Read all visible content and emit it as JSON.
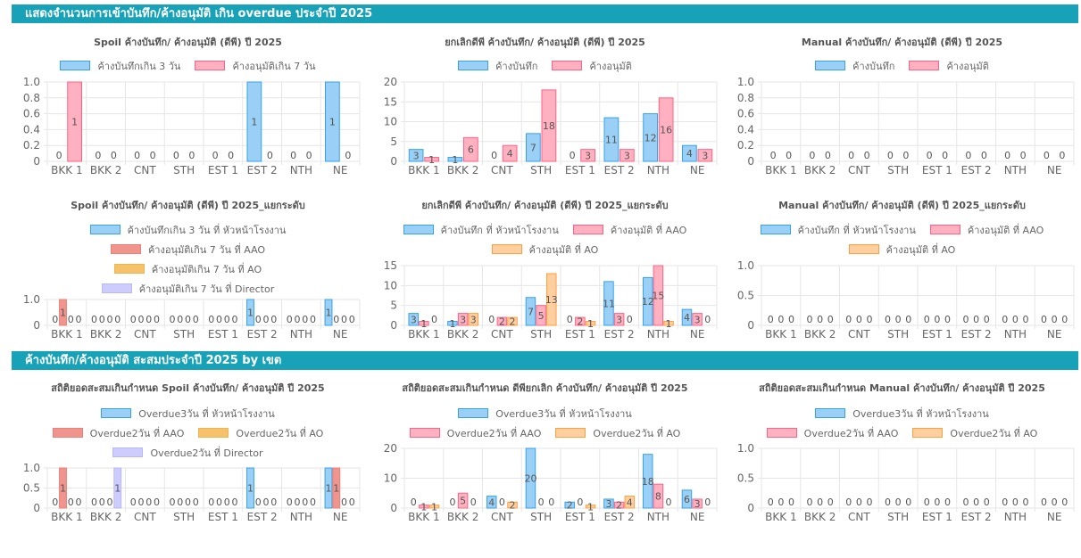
{
  "sections": [
    {
      "title": "แสดงจำนวนการเข้าบันทึก/ค้างอนุมัติ เกิน overdue ประจำปี 2025"
    },
    {
      "title": "ค้างบันทึก/ค้างอนุมัติ สะสมประจำปี 2025 by เขต"
    }
  ],
  "colors": {
    "blue": "#9ad0f5",
    "blue_border": "#36a2eb",
    "pink": "#ffb1c1",
    "pink_border": "#ff6384",
    "orange": "#ffcf9f",
    "orange_border": "#ff9f40",
    "purple": "#ccccff"
  },
  "chart_data": [
    {
      "type": "bar",
      "title": "Spoil ค้างบันทึก/ ค้างอนุมัติ (ดีพี) ปี 2025",
      "categories": [
        "BKK 1",
        "BKK 2",
        "CNT",
        "STH",
        "EST 1",
        "EST 2",
        "NTH",
        "NE"
      ],
      "ylim": [
        0,
        1
      ],
      "yticks": [
        "0",
        "0.2",
        "0.4",
        "0.6",
        "0.8",
        "1.0"
      ],
      "series": [
        {
          "name": "ค้างบันทึกเกิน 3 วัน",
          "values": [
            0,
            0,
            0,
            0,
            0,
            1,
            0,
            1
          ]
        },
        {
          "name": "ค้างอนุมัติเกิน 7 วัน",
          "values": [
            1,
            0,
            0,
            0,
            0,
            0,
            0,
            0
          ]
        }
      ]
    },
    {
      "type": "bar",
      "title": "ยกเลิกดีพี ค้างบันทึก/ ค้างอนุมัติ (ดีพี) ปี 2025",
      "categories": [
        "BKK 1",
        "BKK 2",
        "CNT",
        "STH",
        "EST 1",
        "EST 2",
        "NTH",
        "NE"
      ],
      "ylim": [
        0,
        20
      ],
      "yticks": [
        "0",
        "5",
        "10",
        "15",
        "20"
      ],
      "series": [
        {
          "name": "ค้างบันทึก",
          "values": [
            3,
            1,
            0,
            7,
            0,
            11,
            12,
            4
          ]
        },
        {
          "name": "ค้างอนุมัติ",
          "values": [
            1,
            6,
            4,
            18,
            3,
            3,
            16,
            3
          ]
        }
      ]
    },
    {
      "type": "bar",
      "title": "Manual ค้างบันทึก/ ค้างอนุมัติ (ดีพี) ปี 2025",
      "categories": [
        "BKK 1",
        "BKK 2",
        "CNT",
        "STH",
        "EST 1",
        "EST 2",
        "NTH",
        "NE"
      ],
      "ylim": [
        0,
        1
      ],
      "yticks": [
        "0",
        "0.2",
        "0.4",
        "0.6",
        "0.8",
        "1.0"
      ],
      "series": [
        {
          "name": "ค้างบันทึก",
          "values": [
            0,
            0,
            0,
            0,
            0,
            0,
            0,
            0
          ]
        },
        {
          "name": "ค้างอนุมัติ",
          "values": [
            0,
            0,
            0,
            0,
            0,
            0,
            0,
            0
          ]
        }
      ]
    },
    {
      "type": "bar",
      "title": "Spoil ค้างบันทึก/ ค้างอนุมัติ (ดีพี) ปี 2025_แยกระดับ",
      "categories": [
        "BKK 1",
        "BKK 2",
        "CNT",
        "STH",
        "EST 1",
        "EST 2",
        "NTH",
        "NE"
      ],
      "ylim": [
        0,
        1
      ],
      "yticks": [
        "0",
        "1.0"
      ],
      "series": [
        {
          "name": "ค้างบันทึกเกิน 3 วัน ที่ หัวหน้าโรงงาน",
          "values": [
            0,
            0,
            0,
            0,
            0,
            1,
            0,
            1
          ]
        },
        {
          "name": "ค้างอนุมัติเกิน 7 วัน ที่ AAO",
          "values": [
            1,
            0,
            0,
            0,
            0,
            0,
            0,
            0
          ]
        },
        {
          "name": "ค้างอนุมัติเกิน 7 วัน ที่ AO",
          "values": [
            0,
            0,
            0,
            0,
            0,
            0,
            0,
            0
          ]
        },
        {
          "name": "ค้างอนุมัติเกิน 7 วัน ที่ Director",
          "values": [
            0,
            0,
            0,
            0,
            0,
            0,
            0,
            0
          ]
        }
      ]
    },
    {
      "type": "bar",
      "title": "ยกเลิกดีพี ค้างบันทึก/ ค้างอนุมัติ (ดีพี) ปี 2025_แยกระดับ",
      "categories": [
        "BKK 1",
        "BKK 2",
        "CNT",
        "STH",
        "EST 1",
        "EST 2",
        "NTH",
        "NE"
      ],
      "ylim": [
        0,
        15
      ],
      "yticks": [
        "0",
        "5",
        "10",
        "15"
      ],
      "series": [
        {
          "name": "ค้างบันทึก ที่ หัวหน้าโรงงาน",
          "values": [
            3,
            1,
            0,
            7,
            0,
            11,
            12,
            4
          ]
        },
        {
          "name": "ค้างอนุมัติ ที่ AAO",
          "values": [
            1,
            3,
            2,
            5,
            2,
            3,
            15,
            3
          ]
        },
        {
          "name": "ค้างอนุมัติ ที่ AO",
          "values": [
            0,
            3,
            2,
            13,
            1,
            0,
            1,
            0
          ]
        }
      ]
    },
    {
      "type": "bar",
      "title": "Manual ค้างบันทึก/ ค้างอนุมัติ (ดีพี) ปี 2025_แยกระดับ",
      "categories": [
        "BKK 1",
        "BKK 2",
        "CNT",
        "STH",
        "EST 1",
        "EST 2",
        "NTH",
        "NE"
      ],
      "ylim": [
        0,
        1
      ],
      "yticks": [
        "0",
        "0.5",
        "1.0"
      ],
      "series": [
        {
          "name": "ค้างบันทึก ที่ หัวหน้าโรงงาน",
          "values": [
            0,
            0,
            0,
            0,
            0,
            0,
            0,
            0
          ]
        },
        {
          "name": "ค้างอนุมัติ ที่ AAO",
          "values": [
            0,
            0,
            0,
            0,
            0,
            0,
            0,
            0
          ]
        },
        {
          "name": "ค้างอนุมัติ ที่ AO",
          "values": [
            0,
            0,
            0,
            0,
            0,
            0,
            0,
            0
          ]
        }
      ]
    },
    {
      "type": "bar",
      "title": "สถิติยอดสะสมเกินกำหนด Spoil ค้างบันทึก/ ค้างอนุมัติ ปี 2025",
      "categories": [
        "BKK 1",
        "BKK 2",
        "CNT",
        "STH",
        "EST 1",
        "EST 2",
        "NTH",
        "NE"
      ],
      "ylim": [
        0,
        1
      ],
      "yticks": [
        "0",
        "0.5",
        "1.0"
      ],
      "series": [
        {
          "name": "Overdue3วัน ที่ หัวหน้าโรงงาน",
          "values": [
            0,
            0,
            0,
            0,
            0,
            1,
            0,
            1
          ]
        },
        {
          "name": "Overdue2วัน ที่ AAO",
          "values": [
            1,
            0,
            0,
            0,
            0,
            0,
            0,
            1
          ]
        },
        {
          "name": "Overdue2วัน ที่ AO",
          "values": [
            0,
            0,
            0,
            0,
            0,
            0,
            0,
            0
          ]
        },
        {
          "name": "Overdue2วัน ที่ Director",
          "values": [
            0,
            1,
            0,
            0,
            0,
            0,
            0,
            0
          ]
        }
      ]
    },
    {
      "type": "bar",
      "title": "สถิติยอดสะสมเกินกำหนด ดีพียกเลิก ค้างบันทึก/ ค้างอนุมัติ ปี 2025",
      "categories": [
        "BKK 1",
        "BKK 2",
        "CNT",
        "STH",
        "EST 1",
        "EST 2",
        "NTH",
        "NE"
      ],
      "ylim": [
        0,
        20
      ],
      "yticks": [
        "0",
        "10",
        "20"
      ],
      "series": [
        {
          "name": "Overdue3วัน ที่ หัวหน้าโรงงาน",
          "values": [
            0,
            0,
            4,
            20,
            2,
            3,
            18,
            6
          ]
        },
        {
          "name": "Overdue2วัน ที่ AAO",
          "values": [
            1,
            5,
            0,
            0,
            0,
            2,
            8,
            3
          ]
        },
        {
          "name": "Overdue2วัน ที่ AO",
          "values": [
            1,
            0,
            2,
            0,
            1,
            4,
            0,
            0
          ]
        }
      ]
    },
    {
      "type": "bar",
      "title": "สถิติยอดสะสมเกินกำหนด Manual ค้างบันทึก/ ค้างอนุมัติ ปี 2025",
      "categories": [
        "BKK 1",
        "BKK 2",
        "CNT",
        "STH",
        "EST 1",
        "EST 2",
        "NTH",
        "NE"
      ],
      "ylim": [
        0,
        1
      ],
      "yticks": [
        "0",
        "0.5",
        "1.0"
      ],
      "series": [
        {
          "name": "Overdue3วัน ที่ หัวหน้าโรงงาน",
          "values": [
            0,
            0,
            0,
            0,
            0,
            0,
            0,
            0
          ]
        },
        {
          "name": "Overdue2วัน ที่ AAO",
          "values": [
            0,
            0,
            0,
            0,
            0,
            0,
            0,
            0
          ]
        },
        {
          "name": "Overdue2วัน ที่ AO",
          "values": [
            0,
            0,
            0,
            0,
            0,
            0,
            0,
            0
          ]
        }
      ]
    }
  ]
}
